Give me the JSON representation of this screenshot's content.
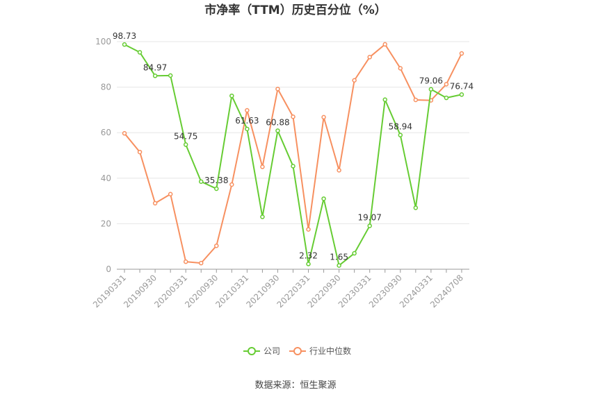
{
  "chart_data": {
    "type": "line",
    "title": "市净率（TTM）历史百分位（%）",
    "source": "数据来源：恒生聚源",
    "ylim": [
      0,
      100
    ],
    "yticks": [
      0,
      20,
      40,
      60,
      80,
      100
    ],
    "grid": true,
    "legend_position": "bottom",
    "x": [
      "20190331",
      "20190630",
      "20190930",
      "20191231",
      "20200331",
      "20200630",
      "20200930",
      "20201231",
      "20210331",
      "20210630",
      "20210930",
      "20211231",
      "20220331",
      "20220630",
      "20220930",
      "20221231",
      "20230331",
      "20230630",
      "20230930",
      "20231231",
      "20240331",
      "20240630",
      "20240708"
    ],
    "xtick_labels": [
      "20190331",
      "20190930",
      "20200331",
      "20200930",
      "20210331",
      "20210930",
      "20220331",
      "20220930",
      "20230331",
      "20230930",
      "20240331",
      "20240708"
    ],
    "series": [
      {
        "name": "公司",
        "color": "#66cc33",
        "values": [
          98.73,
          95.3,
          84.97,
          85.1,
          54.75,
          38.5,
          35.38,
          76.2,
          61.63,
          23.0,
          60.88,
          45.3,
          2.32,
          31.0,
          1.65,
          7.0,
          19.07,
          74.5,
          58.94,
          27.0,
          79.06,
          75.3,
          76.74
        ],
        "labels": {
          "0": "98.73",
          "2": "84.97",
          "4": "54.75",
          "6": "35.38",
          "8": "61.63",
          "10": "60.88",
          "12": "2.32",
          "14": "1.65",
          "16": "19.07",
          "18": "58.94",
          "20": "79.06",
          "22": "76.74"
        }
      },
      {
        "name": "行业中位数",
        "color": "#f79060",
        "values": [
          59.7,
          51.5,
          29.0,
          33.0,
          3.3,
          2.7,
          10.3,
          37.2,
          69.8,
          45.0,
          79.2,
          67.0,
          17.5,
          66.8,
          43.5,
          83.0,
          93.2,
          98.8,
          88.3,
          74.4,
          74.2,
          81.3,
          94.8
        ]
      }
    ]
  }
}
